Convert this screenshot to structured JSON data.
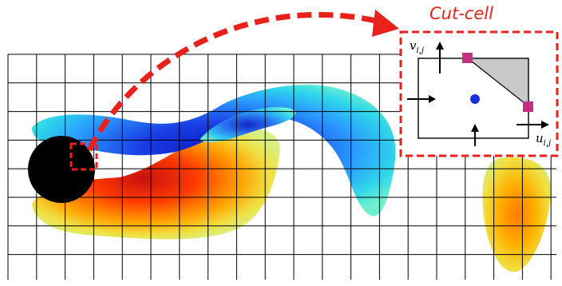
{
  "inset": {
    "title": "Cut-cell",
    "v_label": "v",
    "v_subscript": "i,j",
    "u_label": "u",
    "u_subscript": "i,j"
  },
  "colors": {
    "accent_red": "#e8221b",
    "cylinder": "#000000",
    "grid": "#000000",
    "vortex_positive": [
      "#f0f05a",
      "#f5b800",
      "#ff5a00",
      "#d81a0a"
    ],
    "vortex_negative": [
      "#3be0d8",
      "#28a0ff",
      "#1a50e0",
      "#1020c8"
    ],
    "marker": "#c2307f",
    "inset_marker": "#1a2fd8",
    "cut_region": "#c8c8c8"
  }
}
